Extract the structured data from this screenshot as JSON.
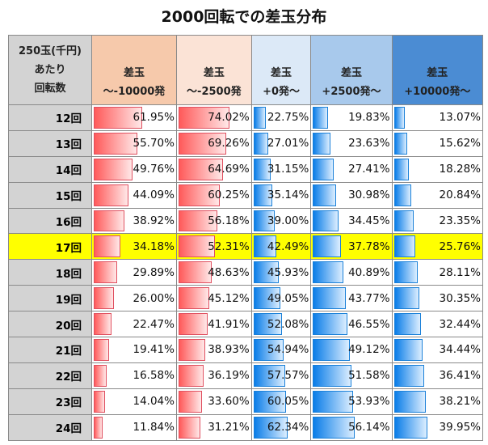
{
  "title": "2000回転での差玉分布",
  "header": {
    "row_label": [
      "250玉(千円)",
      "あたり",
      "回転数"
    ],
    "columns": [
      [
        "差玉",
        "～-10000発"
      ],
      [
        "差玉",
        "～-2500発"
      ],
      [
        "差玉",
        "+0発～"
      ],
      [
        "差玉",
        "+2500発～"
      ],
      [
        "差玉",
        "+10000発～"
      ]
    ]
  },
  "header_colors": [
    "#d3d3d3",
    "#f6c9ab",
    "#fbe3d6",
    "#dce9f7",
    "#a8c9ec",
    "#4b8cd3"
  ],
  "highlight_row": "17回",
  "rows": [
    {
      "label": "12回",
      "values": [
        "61.95%",
        "74.02%",
        "22.75%",
        "19.83%",
        "13.07%"
      ]
    },
    {
      "label": "13回",
      "values": [
        "55.70%",
        "69.26%",
        "27.01%",
        "23.63%",
        "15.62%"
      ]
    },
    {
      "label": "14回",
      "values": [
        "49.76%",
        "64.69%",
        "31.15%",
        "27.41%",
        "18.28%"
      ]
    },
    {
      "label": "15回",
      "values": [
        "44.09%",
        "60.25%",
        "35.14%",
        "30.98%",
        "20.84%"
      ]
    },
    {
      "label": "16回",
      "values": [
        "38.92%",
        "56.18%",
        "39.00%",
        "34.45%",
        "23.35%"
      ]
    },
    {
      "label": "17回",
      "values": [
        "34.18%",
        "52.31%",
        "42.49%",
        "37.78%",
        "25.76%"
      ]
    },
    {
      "label": "18回",
      "values": [
        "29.89%",
        "48.63%",
        "45.93%",
        "40.89%",
        "28.11%"
      ]
    },
    {
      "label": "19回",
      "values": [
        "26.00%",
        "45.12%",
        "49.05%",
        "43.77%",
        "30.35%"
      ]
    },
    {
      "label": "20回",
      "values": [
        "22.47%",
        "41.91%",
        "52.08%",
        "46.55%",
        "32.44%"
      ]
    },
    {
      "label": "21回",
      "values": [
        "19.41%",
        "38.93%",
        "54.94%",
        "49.12%",
        "34.44%"
      ]
    },
    {
      "label": "22回",
      "values": [
        "16.58%",
        "36.19%",
        "57.57%",
        "51.58%",
        "36.41%"
      ]
    },
    {
      "label": "23回",
      "values": [
        "14.04%",
        "33.60%",
        "60.05%",
        "53.93%",
        "38.21%"
      ]
    },
    {
      "label": "24回",
      "values": [
        "11.84%",
        "31.21%",
        "62.34%",
        "56.14%",
        "39.95%"
      ]
    }
  ]
}
